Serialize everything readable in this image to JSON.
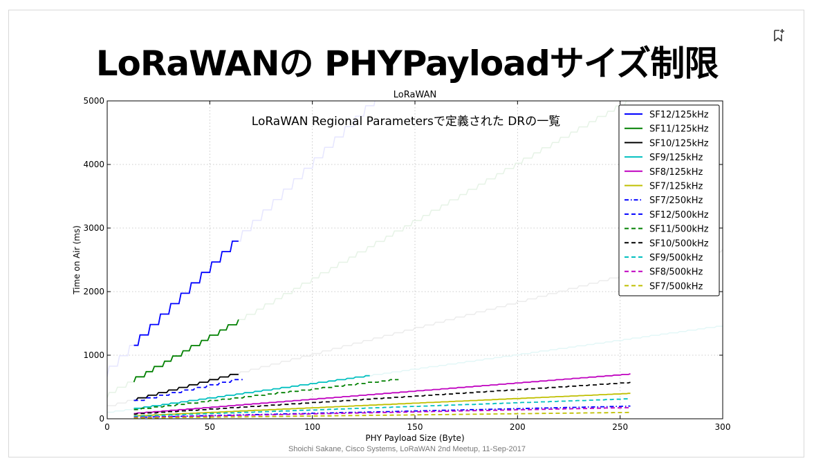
{
  "slide": {
    "title": "LoRaWANの PHYPayloadサイズ制限",
    "footer": "Shoichi Sakane, Cisco Systems, LoRaWAN 2nd Meetup, 11-Sep-2017",
    "bookmark_icon": "bookmark-add-icon"
  },
  "chart_data": {
    "type": "line",
    "title": "LoRaWAN",
    "annotation": "LoRaWAN Regional Parametersで定義された DRの一覧",
    "xlabel": "PHY Payload Size (Byte)",
    "ylabel": "Time on Air (ms)",
    "xlim": [
      0,
      300
    ],
    "ylim": [
      0,
      5000
    ],
    "xticks": [
      "0",
      "50",
      "100",
      "150",
      "200",
      "250",
      "300"
    ],
    "yticks": [
      "0",
      "1000",
      "2000",
      "3000",
      "4000",
      "5000"
    ],
    "grid": true,
    "legend_position": "top-right",
    "series": [
      {
        "name": "SF12/125kHz",
        "sf": 12,
        "bw": 125,
        "color": "#0000ff",
        "dash": "solid",
        "x_range": [
          13,
          64
        ]
      },
      {
        "name": "SF11/125kHz",
        "sf": 11,
        "bw": 125,
        "color": "#008000",
        "dash": "solid",
        "x_range": [
          13,
          64
        ]
      },
      {
        "name": "SF10/125kHz",
        "sf": 10,
        "bw": 125,
        "color": "#000000",
        "dash": "solid",
        "x_range": [
          13,
          64
        ]
      },
      {
        "name": "SF9/125kHz",
        "sf": 9,
        "bw": 125,
        "color": "#00bfbf",
        "dash": "solid",
        "x_range": [
          13,
          128
        ]
      },
      {
        "name": "SF8/125kHz",
        "sf": 8,
        "bw": 125,
        "color": "#bf00bf",
        "dash": "solid",
        "x_range": [
          13,
          255
        ]
      },
      {
        "name": "SF7/125kHz",
        "sf": 7,
        "bw": 125,
        "color": "#bfbf00",
        "dash": "solid",
        "x_range": [
          13,
          255
        ]
      },
      {
        "name": "SF7/250kHz",
        "sf": 7,
        "bw": 250,
        "color": "#0000ff",
        "dash": "dashdot",
        "x_range": [
          13,
          255
        ]
      },
      {
        "name": "SF12/500kHz",
        "sf": 12,
        "bw": 500,
        "color": "#0000ff",
        "dash": "dashed",
        "x_range": [
          13,
          66
        ]
      },
      {
        "name": "SF11/500kHz",
        "sf": 11,
        "bw": 500,
        "color": "#008000",
        "dash": "dashed",
        "x_range": [
          13,
          142
        ]
      },
      {
        "name": "SF10/500kHz",
        "sf": 10,
        "bw": 500,
        "color": "#000000",
        "dash": "dashed",
        "x_range": [
          13,
          255
        ]
      },
      {
        "name": "SF9/500kHz",
        "sf": 9,
        "bw": 500,
        "color": "#00bfbf",
        "dash": "dashed",
        "x_range": [
          13,
          255
        ]
      },
      {
        "name": "SF8/500kHz",
        "sf": 8,
        "bw": 500,
        "color": "#bf00bf",
        "dash": "dashed",
        "x_range": [
          13,
          255
        ]
      },
      {
        "name": "SF7/500kHz",
        "sf": 7,
        "bw": 500,
        "color": "#bfbf00",
        "dash": "dashed",
        "x_range": [
          13,
          255
        ]
      }
    ]
  }
}
